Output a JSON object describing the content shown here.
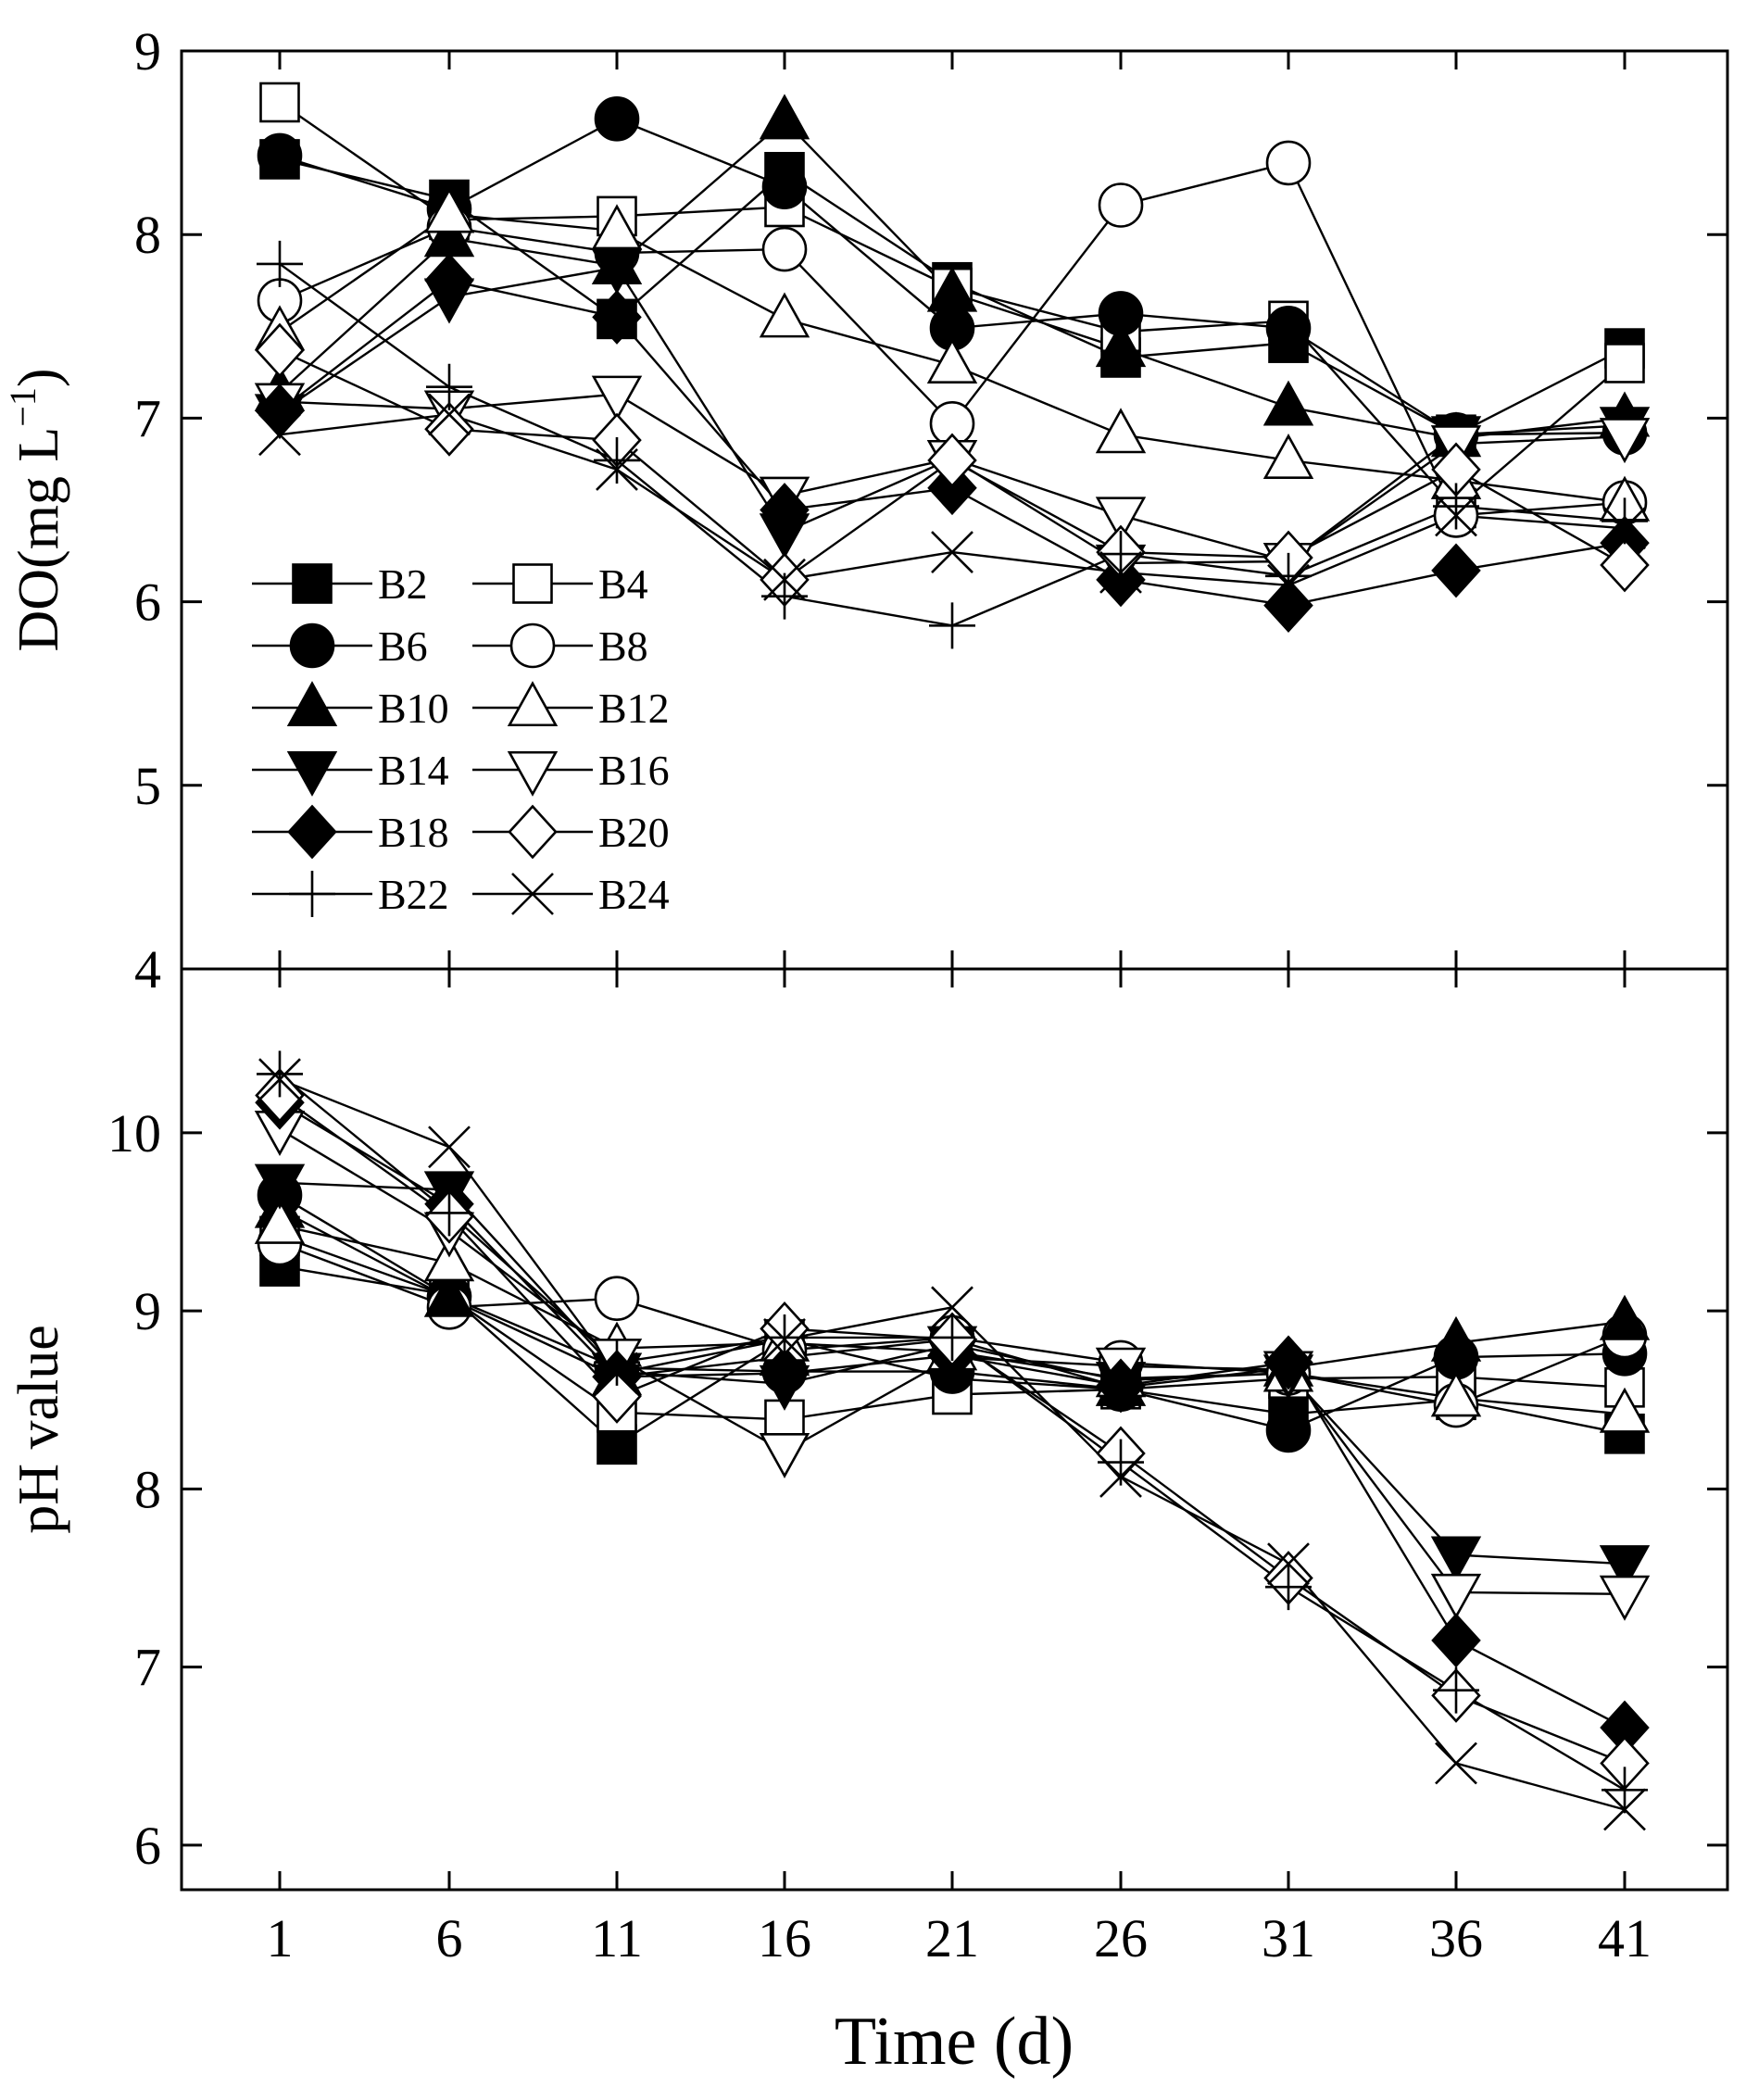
{
  "chart_data": {
    "type": "line",
    "x": [
      1,
      6,
      11,
      16,
      21,
      26,
      31,
      36,
      41
    ],
    "xlabel": "Time (d)",
    "x_ticks": [
      "1",
      "6",
      "11",
      "16",
      "21",
      "26",
      "31",
      "36",
      "41"
    ],
    "panels": [
      {
        "id": "do",
        "ylabel": "DO(mg L",
        "ylabel_sup": "−1",
        "ylabel_close": ")",
        "ylim": [
          4,
          9
        ],
        "y_ticks": [
          "4",
          "5",
          "6",
          "7",
          "8",
          "9"
        ],
        "legend_position": "middle-left",
        "series": [
          {
            "name": "B2",
            "marker": "square-filled",
            "values": [
              8.41,
              8.19,
              7.54,
              8.34,
              7.74,
              7.33,
              7.41,
              6.91,
              7.38
            ]
          },
          {
            "name": "B4",
            "marker": "square-open",
            "values": [
              8.72,
              8.08,
              8.1,
              8.15,
              7.71,
              7.47,
              7.53,
              6.51,
              7.3
            ]
          },
          {
            "name": "B6",
            "marker": "circle-filled",
            "values": [
              8.43,
              8.14,
              8.63,
              8.26,
              7.49,
              7.57,
              7.49,
              6.91,
              6.92
            ]
          },
          {
            "name": "B8",
            "marker": "circle-open",
            "values": [
              7.64,
              8.04,
              7.9,
              7.92,
              6.97,
              8.16,
              8.39,
              6.47,
              6.54
            ]
          },
          {
            "name": "B10",
            "marker": "triangle-up-filled",
            "values": [
              7.14,
              7.98,
              7.83,
              8.62,
              7.68,
              7.38,
              7.06,
              6.89,
              7.0
            ]
          },
          {
            "name": "B12",
            "marker": "triangle-up-open",
            "values": [
              7.47,
              8.11,
              8.02,
              7.54,
              7.29,
              6.91,
              6.77,
              6.66,
              6.54
            ]
          },
          {
            "name": "B14",
            "marker": "triangle-down-filled",
            "values": [
              7.03,
              7.66,
              7.82,
              6.38,
              6.78,
              6.21,
              6.22,
              6.91,
              6.96
            ]
          },
          {
            "name": "B16",
            "marker": "triangle-down-open",
            "values": [
              7.09,
              7.05,
              7.13,
              6.58,
              6.78,
              6.47,
              6.22,
              6.86,
              6.9
            ]
          },
          {
            "name": "B18",
            "marker": "diamond-filled",
            "values": [
              7.04,
              7.75,
              7.55,
              6.5,
              6.62,
              6.12,
              5.98,
              6.17,
              6.32
            ]
          },
          {
            "name": "B20",
            "marker": "diamond-open",
            "values": [
              7.37,
              6.94,
              6.88,
              6.12,
              6.77,
              6.27,
              6.24,
              6.72,
              6.2
            ]
          },
          {
            "name": "B22",
            "marker": "plus",
            "values": [
              7.84,
              7.17,
              6.77,
              6.03,
              5.87,
              6.26,
              6.14,
              6.52,
              6.44
            ]
          },
          {
            "name": "B24",
            "marker": "x",
            "values": [
              6.91,
              7.02,
              6.72,
              6.12,
              6.27,
              6.16,
              6.09,
              6.47,
              6.4
            ]
          }
        ]
      },
      {
        "id": "ph",
        "ylabel": "pH value",
        "ylim": [
          5.75,
          10.92
        ],
        "y_ticks": [
          "6",
          "7",
          "8",
          "9",
          "10"
        ],
        "y_tick_values": [
          6,
          7,
          8,
          9,
          10
        ],
        "series": [
          {
            "name": "B2",
            "marker": "square-filled",
            "values": [
              9.25,
              9.09,
              8.25,
              8.84,
              8.62,
              8.56,
              8.42,
              8.5,
              8.31
            ]
          },
          {
            "name": "B4",
            "marker": "square-open",
            "values": [
              9.42,
              9.08,
              8.43,
              8.39,
              8.53,
              8.56,
              8.62,
              8.63,
              8.57
            ]
          },
          {
            "name": "B6",
            "marker": "circle-filled",
            "values": [
              9.65,
              9.08,
              8.68,
              8.66,
              8.66,
              8.56,
              8.33,
              8.74,
              8.76
            ]
          },
          {
            "name": "B8",
            "marker": "circle-open",
            "values": [
              9.38,
              9.02,
              9.07,
              8.78,
              8.85,
              8.71,
              8.65,
              8.47,
              8.86
            ]
          },
          {
            "name": "B10",
            "marker": "triangle-up-filled",
            "values": [
              9.57,
              9.07,
              8.63,
              8.74,
              8.84,
              8.57,
              8.68,
              8.82,
              8.94
            ]
          },
          {
            "name": "B12",
            "marker": "triangle-up-open",
            "values": [
              9.48,
              9.27,
              8.79,
              8.82,
              8.77,
              8.62,
              8.65,
              8.51,
              8.42
            ]
          },
          {
            "name": "B14",
            "marker": "triangle-down-filled",
            "values": [
              9.72,
              9.68,
              8.66,
              8.59,
              8.81,
              8.61,
              8.65,
              7.63,
              7.58
            ]
          },
          {
            "name": "B16",
            "marker": "triangle-down-open",
            "values": [
              10.02,
              9.45,
              8.74,
              8.21,
              8.74,
              8.69,
              8.67,
              7.42,
              7.41
            ]
          },
          {
            "name": "B18",
            "marker": "diamond-filled",
            "values": [
              10.17,
              9.6,
              8.63,
              8.65,
              8.75,
              8.58,
              8.71,
              7.15,
              6.66
            ]
          },
          {
            "name": "B20",
            "marker": "diamond-open",
            "values": [
              10.21,
              9.53,
              8.52,
              8.9,
              8.84,
              8.2,
              7.5,
              6.84,
              6.46
            ]
          },
          {
            "name": "B22",
            "marker": "plus",
            "values": [
              10.33,
              9.55,
              8.71,
              8.85,
              8.85,
              8.15,
              7.45,
              6.87,
              6.31
            ]
          },
          {
            "name": "B24",
            "marker": "x",
            "values": [
              10.3,
              9.92,
              8.65,
              8.84,
              9.02,
              8.07,
              7.58,
              6.46,
              6.2
            ]
          }
        ]
      }
    ]
  }
}
